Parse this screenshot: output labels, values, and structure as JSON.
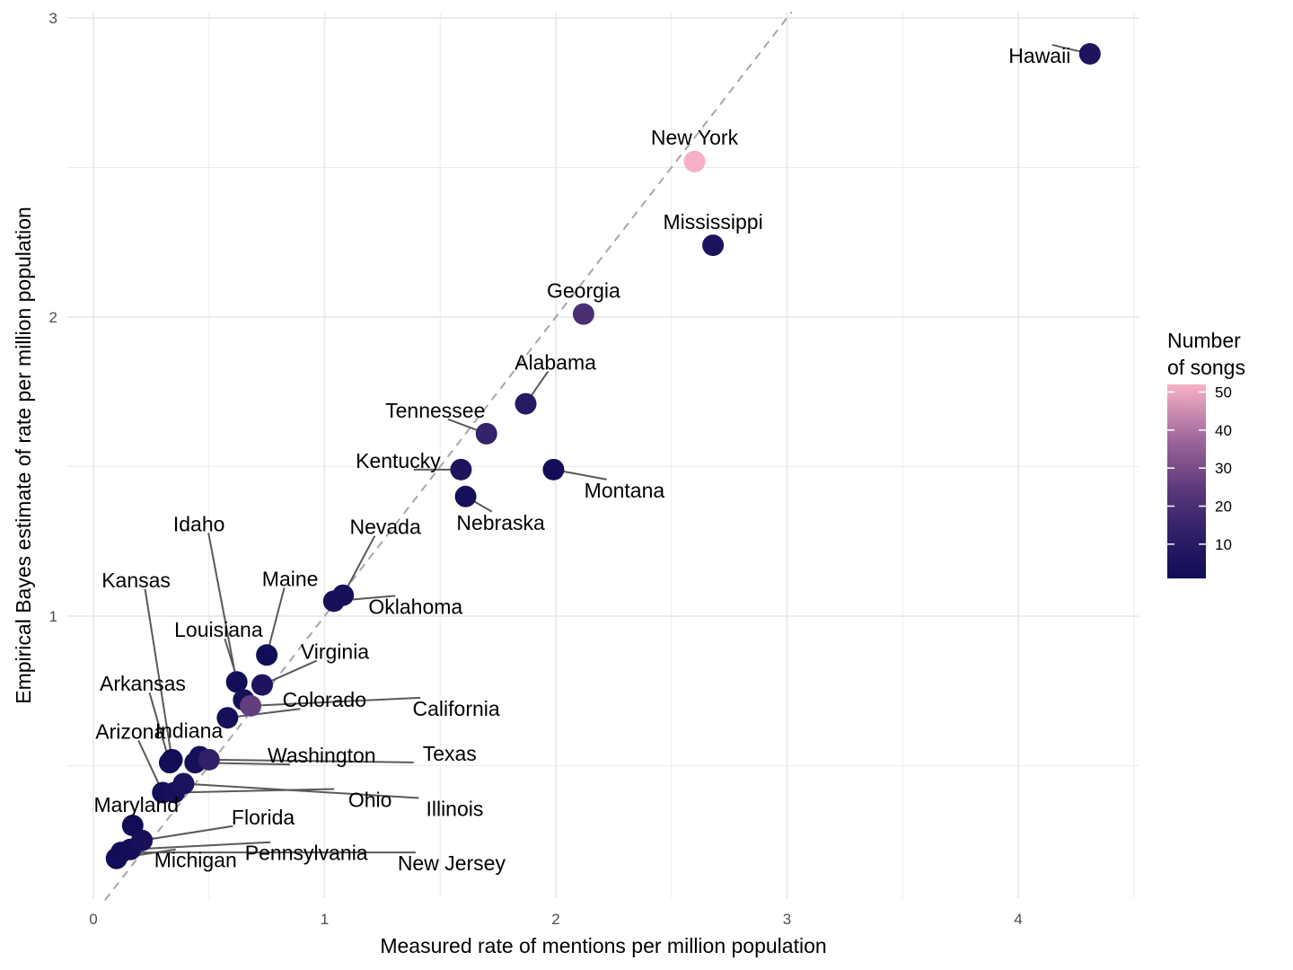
{
  "chart_data": {
    "type": "scatter",
    "xlabel": "Measured rate of mentions per million population",
    "ylabel": "Empirical Bayes estimate of rate per million population",
    "xlim": [
      -0.08,
      4.5
    ],
    "ylim": [
      -0.05,
      3.02
    ],
    "x_ticks": [
      0,
      1,
      2,
      3,
      4
    ],
    "y_ticks": [
      1,
      2,
      3
    ],
    "grid": true,
    "reference_line": "y = x (dashed)",
    "legend": {
      "title": [
        "Number",
        "of songs"
      ],
      "ticks": [
        10,
        20,
        30,
        40,
        50
      ],
      "range": [
        1,
        52
      ],
      "color_low": "#110d56",
      "color_high": "#f7b1c7",
      "placement": "right"
    },
    "points": [
      {
        "label": "Hawaii",
        "x": 4.31,
        "y": 2.88,
        "songs": 6
      },
      {
        "label": "New York",
        "x": 2.6,
        "y": 2.52,
        "songs": 52
      },
      {
        "label": "Mississippi",
        "x": 2.68,
        "y": 2.24,
        "songs": 5
      },
      {
        "label": "Georgia",
        "x": 2.12,
        "y": 2.01,
        "songs": 20
      },
      {
        "label": "Alabama",
        "x": 1.87,
        "y": 1.71,
        "songs": 10
      },
      {
        "label": "Tennessee",
        "x": 1.7,
        "y": 1.61,
        "songs": 14
      },
      {
        "label": "Kentucky",
        "x": 1.59,
        "y": 1.49,
        "songs": 6
      },
      {
        "label": "Montana",
        "x": 1.99,
        "y": 1.49,
        "songs": 2
      },
      {
        "label": "Nebraska",
        "x": 1.61,
        "y": 1.4,
        "songs": 3
      },
      {
        "label": "Nevada",
        "x": 1.08,
        "y": 1.07,
        "songs": 3
      },
      {
        "label": "Oklahoma",
        "x": 1.04,
        "y": 1.05,
        "songs": 4
      },
      {
        "label": "Maine",
        "x": 0.75,
        "y": 0.87,
        "songs": 1
      },
      {
        "label": "Idaho",
        "x": 0.62,
        "y": 0.78,
        "songs": 1
      },
      {
        "label": "Virginia",
        "x": 0.73,
        "y": 0.77,
        "songs": 6
      },
      {
        "label": "Louisiana",
        "x": 0.65,
        "y": 0.72,
        "songs": 3
      },
      {
        "label": "California",
        "x": 0.68,
        "y": 0.7,
        "songs": 26
      },
      {
        "label": "Colorado",
        "x": 0.58,
        "y": 0.66,
        "songs": 3
      },
      {
        "label": "Texas",
        "x": 0.5,
        "y": 0.52,
        "songs": 13
      },
      {
        "label": "Indiana",
        "x": 0.46,
        "y": 0.53,
        "songs": 3
      },
      {
        "label": "Washington",
        "x": 0.44,
        "y": 0.51,
        "songs": 3
      },
      {
        "label": "Kansas",
        "x": 0.34,
        "y": 0.52,
        "songs": 1
      },
      {
        "label": "Arkansas",
        "x": 0.33,
        "y": 0.51,
        "songs": 1
      },
      {
        "label": "Illinois",
        "x": 0.39,
        "y": 0.44,
        "songs": 5
      },
      {
        "label": "Arizona",
        "x": 0.3,
        "y": 0.41,
        "songs": 2
      },
      {
        "label": "Ohio",
        "x": 0.35,
        "y": 0.41,
        "songs": 4
      },
      {
        "label": "Maryland",
        "x": 0.17,
        "y": 0.3,
        "songs": 1
      },
      {
        "label": "Florida",
        "x": 0.21,
        "y": 0.25,
        "songs": 4
      },
      {
        "label": "Pennsylvania",
        "x": 0.16,
        "y": 0.22,
        "songs": 2
      },
      {
        "label": "New Jersey",
        "x": 0.12,
        "y": 0.21,
        "songs": 1
      },
      {
        "label": "Michigan",
        "x": 0.1,
        "y": 0.19,
        "songs": 1
      }
    ]
  }
}
